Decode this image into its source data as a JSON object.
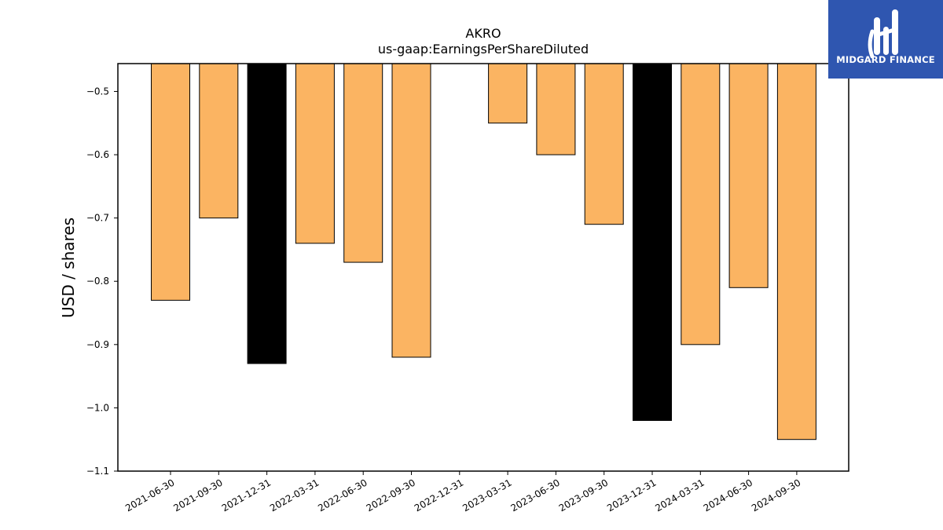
{
  "logo": {
    "text": "MIDGARD FINANCE"
  },
  "colors": {
    "default_bar": "#fbb462",
    "highlight_bar": "#000000",
    "logo_background": "#2f56b0",
    "axis": "#000000"
  },
  "chart_data": {
    "type": "bar",
    "title": "AKRO",
    "subtitle": "us-gaap:EarningsPerShareDiluted",
    "xlabel": "",
    "ylabel": "USD / shares",
    "categories": [
      "2021-06-30",
      "2021-09-30",
      "2021-12-31",
      "2022-03-31",
      "2022-06-30",
      "2022-09-30",
      "2022-12-31",
      "2023-03-31",
      "2023-06-30",
      "2023-09-30",
      "2023-12-31",
      "2024-03-31",
      "2024-06-30",
      "2024-09-30"
    ],
    "values": [
      -0.83,
      -0.7,
      -0.93,
      -0.74,
      -0.77,
      -0.92,
      null,
      -0.55,
      -0.6,
      -0.71,
      -1.02,
      -0.9,
      -0.81,
      -1.05
    ],
    "highlighted": [
      false,
      false,
      true,
      false,
      false,
      false,
      false,
      false,
      false,
      false,
      true,
      false,
      false,
      false
    ],
    "ylim": [
      -1.1,
      -0.456
    ],
    "yticks": [
      -0.5,
      -0.6,
      -0.7,
      -0.8,
      -0.9,
      -1.0,
      -1.1
    ],
    "ytick_labels": [
      "−0.5",
      "−0.6",
      "−0.7",
      "−0.8",
      "−0.9",
      "−1.0",
      "−1.1"
    ],
    "grid": false,
    "legend": "none"
  }
}
